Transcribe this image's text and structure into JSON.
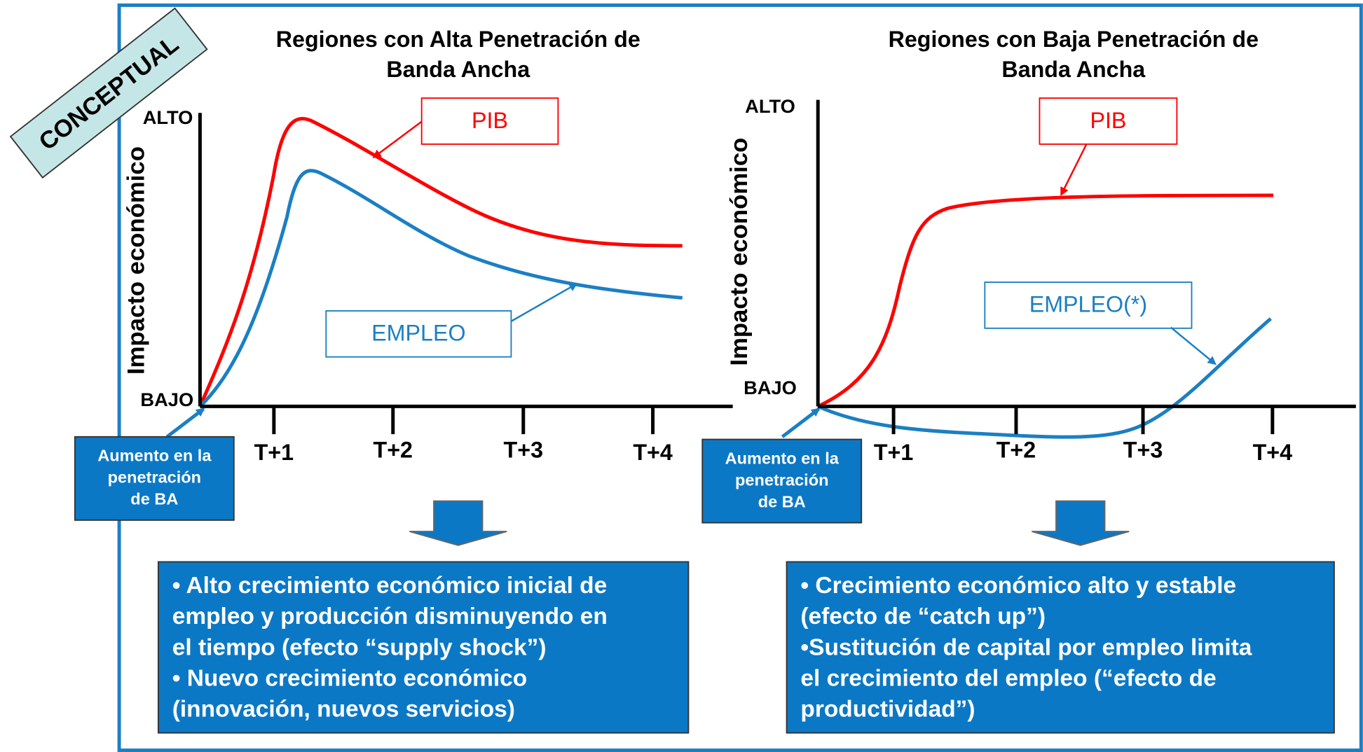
{
  "badge": "CONCEPTUAL",
  "panels": [
    {
      "title_lines": [
        "Regiones con Alta Penetración de",
        "Banda Ancha"
      ],
      "y_axis_label": "Impacto económico",
      "y_high": "ALTO",
      "y_low": "BAJO",
      "x_ticks": [
        "T+1",
        "T+2",
        "T+3",
        "T+4"
      ],
      "pib_label": "PIB",
      "empleo_label": "EMPLEO",
      "start_note": [
        "Aumento en la",
        "penetración",
        "de BA"
      ],
      "summary": [
        "• Alto crecimiento económico inicial  de",
        "empleo y producción disminuyendo en",
        "el tiempo (efecto “supply shock”)",
        "• Nuevo crecimiento económico",
        "(innovación, nuevos servicios)"
      ]
    },
    {
      "title_lines": [
        "Regiones con Baja Penetración de",
        "Banda Ancha"
      ],
      "y_axis_label": "Impacto económico",
      "y_high": "ALTO",
      "y_low": "BAJO",
      "x_ticks": [
        "T+1",
        "T+2",
        "T+3",
        "T+4"
      ],
      "pib_label": "PIB",
      "empleo_label": "EMPLEO(*)",
      "start_note": [
        "Aumento en la",
        "penetración",
        "de BA"
      ],
      "summary": [
        "• Crecimiento económico alto y estable",
        "(efecto de “catch up”)",
        "•Sustitución de capital por empleo limita",
        "el crecimiento del empleo (“efecto de",
        "productividad”)"
      ]
    }
  ]
}
